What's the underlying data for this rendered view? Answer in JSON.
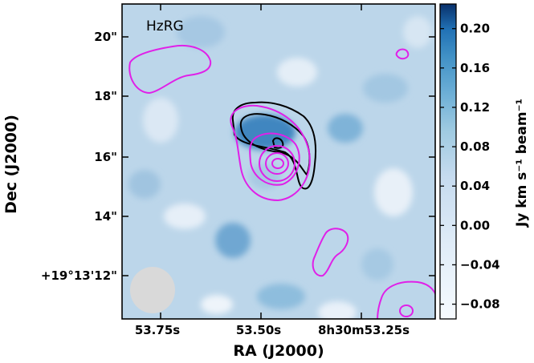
{
  "chart_data": {
    "type": "heatmap",
    "panel_label": "HzRG",
    "xlabel": "RA (J2000)",
    "ylabel": "Dec (J2000)",
    "x_tick_labels": [
      "53.75s",
      "53.50s",
      "8h30m53.25s"
    ],
    "y_tick_labels": [
      "+19°13'12\"",
      "14\"",
      "16\"",
      "18\"",
      "20\""
    ],
    "colorbar": {
      "label": "Jy km s⁻¹ beam⁻¹",
      "ticks": [
        0.2,
        0.16,
        0.12,
        0.08,
        0.04,
        0.0,
        -0.04,
        -0.08
      ],
      "tick_labels": [
        "0.20",
        "0.16",
        "0.12",
        "0.08",
        "0.04",
        "0.00",
        "−0.04",
        "−0.08"
      ],
      "range": [
        -0.095,
        0.225
      ],
      "colormap": "Blues"
    },
    "colors": {
      "black_contours": "#000000",
      "magenta_contours": "#e020e8",
      "beam": "#d9d9d9"
    },
    "beam": "filled grey ellipse, bottom-left"
  }
}
